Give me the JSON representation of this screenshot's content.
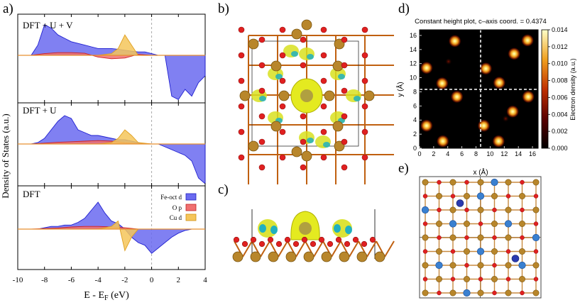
{
  "panels": {
    "a": "a)",
    "b": "b)",
    "c": "c)",
    "d": "d)",
    "e": "e)"
  },
  "dos": {
    "ylabel": "Density of States (a.u.)",
    "xlabel_main": "E - E",
    "xlabel_sub": "F",
    "xlabel_unit": " (eV)",
    "xticks": [
      "-10",
      "-8",
      "-6",
      "-4",
      "-2",
      "0",
      "2",
      "4"
    ],
    "subplots": [
      {
        "title": "DFT + U + V"
      },
      {
        "title": "DFT + U"
      },
      {
        "title": "DFT"
      }
    ],
    "legend": [
      {
        "label": "Fe-oct d",
        "color": "#3a3ae8"
      },
      {
        "label": "O p",
        "color": "#e84a4a"
      },
      {
        "label": "Cu d",
        "color": "#f2b233"
      }
    ]
  },
  "map": {
    "title": "Constant height plot, c–axis coord. = 0.4374",
    "xlabel": "x (Å)",
    "ylabel": "y (Å)",
    "xticks": [
      "0",
      "2",
      "4",
      "6",
      "8",
      "10",
      "12",
      "14",
      "16"
    ],
    "yticks": [
      "0",
      "2",
      "4",
      "6",
      "8",
      "10",
      "12",
      "14",
      "16"
    ],
    "colorbar_label": "Electron density (a.u.)",
    "colorbar_ticks": [
      "0.000",
      "0.002",
      "0.004",
      "0.006",
      "0.008",
      "0.010",
      "0.012",
      "0.014"
    ]
  },
  "chart_data": [
    {
      "type": "area",
      "title": "DFT + U + V",
      "xlabel": "E - EF (eV)",
      "ylabel": "Density of States (a.u.)",
      "xlim": [
        -10,
        4
      ],
      "series": [
        {
          "name": "Fe-oct d",
          "x": [
            -9.0,
            -8.5,
            -8.0,
            -7.5,
            -7.0,
            -6.5,
            -6.0,
            -5.5,
            -5.0,
            -4.5,
            -4.0,
            -3.5,
            -3.0,
            -2.5,
            -2.0,
            -1.5,
            -1.0,
            -0.5,
            0.0,
            0.5,
            1.0,
            1.5,
            2.0,
            2.5,
            3.0,
            3.5,
            4.0
          ],
          "y": [
            0.0,
            0.3,
            0.9,
            0.8,
            0.6,
            0.5,
            0.4,
            0.35,
            0.3,
            0.25,
            0.2,
            0.2,
            0.2,
            0.18,
            0.15,
            0.12,
            0.1,
            0.1,
            0.05,
            0.0,
            0.0,
            -1.2,
            -1.3,
            -1.0,
            -1.2,
            -0.8,
            -0.6
          ]
        },
        {
          "name": "O p",
          "x": [
            -9,
            -8,
            -7,
            -6,
            -5,
            -4,
            -3,
            -2,
            -1,
            0,
            1,
            2,
            3,
            4
          ],
          "y": [
            0.0,
            0.05,
            0.08,
            0.08,
            0.06,
            -0.05,
            -0.1,
            -0.08,
            0.03,
            0.0,
            0.0,
            0.0,
            0.0,
            0.0
          ]
        },
        {
          "name": "Cu d",
          "x": [
            -9,
            -8,
            -7,
            -6,
            -5,
            -4,
            -3,
            -2.5,
            -2,
            -1.5,
            -1,
            0,
            1,
            2,
            3,
            4
          ],
          "y": [
            0.0,
            0.0,
            0.0,
            0.0,
            0.0,
            0.0,
            0.05,
            0.2,
            0.6,
            0.3,
            0.0,
            0.0,
            0.0,
            0.0,
            0.0,
            0.0
          ]
        }
      ]
    },
    {
      "type": "area",
      "title": "DFT + U",
      "xlabel": "E - EF (eV)",
      "ylabel": "Density of States (a.u.)",
      "xlim": [
        -10,
        4
      ],
      "series": [
        {
          "name": "Fe-oct d",
          "x": [
            -9.0,
            -8.5,
            -8.0,
            -7.5,
            -7.0,
            -6.5,
            -6.0,
            -5.5,
            -5.0,
            -4.5,
            -4.0,
            -3.5,
            -3.0,
            -2.5,
            -2.0,
            -1.5,
            -1.0,
            -0.5,
            0.0,
            0.5,
            1.0,
            1.5,
            2.0,
            2.5,
            3.0,
            3.5,
            4.0
          ],
          "y": [
            0.0,
            0.05,
            0.2,
            0.5,
            0.8,
            1.0,
            0.9,
            0.5,
            0.4,
            0.3,
            0.3,
            0.25,
            0.2,
            0.15,
            0.15,
            0.1,
            0.05,
            0.0,
            0.0,
            0.0,
            -0.1,
            -0.2,
            -0.3,
            -0.4,
            -0.6,
            -1.2,
            -1.4
          ]
        },
        {
          "name": "O p",
          "x": [
            -9,
            -8,
            -7,
            -6,
            -5,
            -4,
            -3,
            -2,
            -1,
            0,
            1,
            2,
            3,
            4
          ],
          "y": [
            0.0,
            0.03,
            0.06,
            0.08,
            0.1,
            0.12,
            0.1,
            0.05,
            0.02,
            0.0,
            0.0,
            0.0,
            0.0,
            0.0
          ]
        },
        {
          "name": "Cu d",
          "x": [
            -9,
            -8,
            -7,
            -6,
            -5,
            -4,
            -3,
            -2.5,
            -2,
            -1.5,
            -1,
            0,
            1,
            2,
            3,
            4
          ],
          "y": [
            0.0,
            0.0,
            0.0,
            0.0,
            0.0,
            0.0,
            0.05,
            0.2,
            0.5,
            0.3,
            0.05,
            0.0,
            0.0,
            0.0,
            0.0,
            0.0
          ]
        }
      ]
    },
    {
      "type": "area",
      "title": "DFT",
      "xlabel": "E - EF (eV)",
      "ylabel": "Density of States (a.u.)",
      "xlim": [
        -10,
        4
      ],
      "series": [
        {
          "name": "Fe-oct d",
          "x": [
            -9.0,
            -8.5,
            -8.0,
            -7.5,
            -7.0,
            -6.5,
            -6.0,
            -5.5,
            -5.0,
            -4.5,
            -4.0,
            -3.5,
            -3.0,
            -2.5,
            -2.0,
            -1.5,
            -1.0,
            -0.5,
            0.0,
            0.5,
            1.0,
            1.5,
            2.0,
            2.5,
            3.0,
            3.5,
            4.0
          ],
          "y": [
            0.0,
            0.0,
            0.05,
            0.1,
            0.1,
            0.15,
            0.15,
            0.25,
            0.4,
            0.7,
            1.0,
            0.6,
            0.3,
            0.2,
            0.0,
            -0.3,
            -0.5,
            -0.6,
            -0.9,
            -0.7,
            -0.5,
            -0.3,
            -0.15,
            -0.05,
            0.0,
            0.0,
            0.0
          ]
        },
        {
          "name": "O p",
          "x": [
            -9,
            -8,
            -7,
            -6,
            -5,
            -4,
            -3,
            -2,
            -1,
            0,
            1,
            2,
            3,
            4
          ],
          "y": [
            0.0,
            0.02,
            0.04,
            0.08,
            0.1,
            0.1,
            0.08,
            0.05,
            0.0,
            0.0,
            0.0,
            0.0,
            0.0,
            0.0
          ]
        },
        {
          "name": "Cu d",
          "x": [
            -9,
            -8,
            -7,
            -6,
            -5,
            -4,
            -3,
            -2.5,
            -2,
            -1.5,
            -1,
            0,
            1,
            2,
            3,
            4
          ],
          "y": [
            0.0,
            0.0,
            0.0,
            0.0,
            0.0,
            0.0,
            0.1,
            0.3,
            -0.8,
            -0.3,
            0.0,
            0.0,
            0.0,
            0.0,
            0.0,
            0.0
          ]
        }
      ]
    },
    {
      "type": "heatmap",
      "title": "Constant height plot, c–axis coord. = 0.4374",
      "xlabel": "x (Å)",
      "ylabel": "y (Å)",
      "xlim": [
        0,
        16.8
      ],
      "ylim": [
        0,
        16.8
      ],
      "colorbar_label": "Electron density (a.u.)",
      "clim": [
        0,
        0.014
      ],
      "peaks": [
        {
          "x": 5.0,
          "y": 15.2,
          "v": 0.0135
        },
        {
          "x": 13.4,
          "y": 13.4,
          "v": 0.0135
        },
        {
          "x": 15.3,
          "y": 15.3,
          "v": 0.0125
        },
        {
          "x": 1.0,
          "y": 11.4,
          "v": 0.013
        },
        {
          "x": 3.2,
          "y": 9.2,
          "v": 0.013
        },
        {
          "x": 9.4,
          "y": 11.3,
          "v": 0.0125
        },
        {
          "x": 11.3,
          "y": 9.3,
          "v": 0.0125
        },
        {
          "x": 5.3,
          "y": 7.3,
          "v": 0.012
        },
        {
          "x": 13.2,
          "y": 5.2,
          "v": 0.012
        },
        {
          "x": 15.4,
          "y": 7.3,
          "v": 0.012
        },
        {
          "x": 1.0,
          "y": 3.2,
          "v": 0.012
        },
        {
          "x": 3.3,
          "y": 1.0,
          "v": 0.012
        },
        {
          "x": 11.2,
          "y": 1.0,
          "v": 0.012
        },
        {
          "x": 9.1,
          "y": 3.2,
          "v": 0.012
        },
        {
          "x": 4.1,
          "y": 12.3,
          "v": 0.003
        },
        {
          "x": 12.2,
          "y": 4.2,
          "v": 0.003
        }
      ]
    }
  ]
}
